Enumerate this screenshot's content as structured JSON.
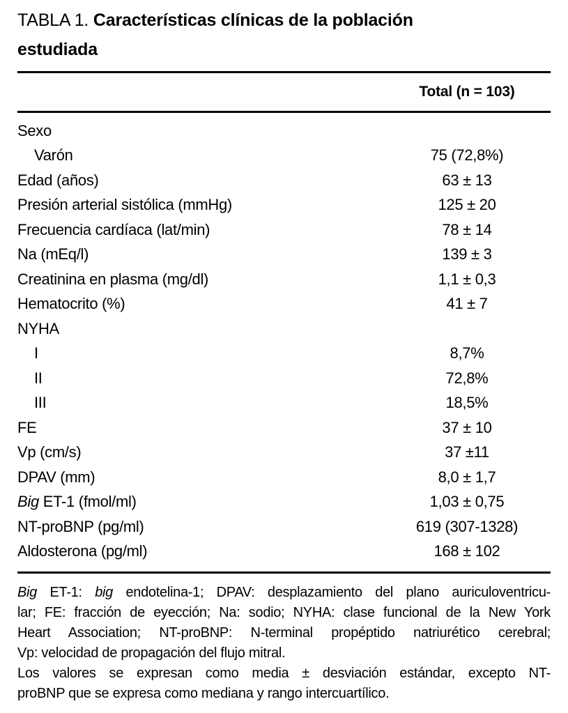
{
  "title": {
    "prefix": "TABLA 1. ",
    "bold_line1": "Características clínicas de la población",
    "bold_line2": "estudiada"
  },
  "header": {
    "value_column": "Total (n = 103)"
  },
  "rows": [
    {
      "label_segments": [
        {
          "text": "Sexo"
        }
      ],
      "value": "",
      "indent": false
    },
    {
      "label_segments": [
        {
          "text": "Varón"
        }
      ],
      "value": "75 (72,8%)",
      "indent": true
    },
    {
      "label_segments": [
        {
          "text": "Edad (años)"
        }
      ],
      "value": "63 ± 13",
      "indent": false
    },
    {
      "label_segments": [
        {
          "text": "Presión arterial sistólica (mmHg)"
        }
      ],
      "value": "125 ± 20",
      "indent": false
    },
    {
      "label_segments": [
        {
          "text": "Frecuencia cardíaca (lat/min)"
        }
      ],
      "value": "78 ± 14",
      "indent": false
    },
    {
      "label_segments": [
        {
          "text": "Na (mEq/l)"
        }
      ],
      "value": "139 ± 3",
      "indent": false
    },
    {
      "label_segments": [
        {
          "text": "Creatinina en plasma (mg/dl)"
        }
      ],
      "value": "1,1 ± 0,3",
      "indent": false
    },
    {
      "label_segments": [
        {
          "text": "Hematocrito (%)"
        }
      ],
      "value": "41 ± 7",
      "indent": false
    },
    {
      "label_segments": [
        {
          "text": "NYHA"
        }
      ],
      "value": "",
      "indent": false
    },
    {
      "label_segments": [
        {
          "text": "I"
        }
      ],
      "value": "8,7%",
      "indent": true
    },
    {
      "label_segments": [
        {
          "text": "II"
        }
      ],
      "value": "72,8%",
      "indent": true
    },
    {
      "label_segments": [
        {
          "text": "III"
        }
      ],
      "value": "18,5%",
      "indent": true
    },
    {
      "label_segments": [
        {
          "text": "FE"
        }
      ],
      "value": "37 ± 10",
      "indent": false
    },
    {
      "label_segments": [
        {
          "text": "Vp (cm/s)"
        }
      ],
      "value": "37 ±11",
      "indent": false
    },
    {
      "label_segments": [
        {
          "text": "DPAV (mm)"
        }
      ],
      "value": "8,0 ± 1,7",
      "indent": false
    },
    {
      "label_segments": [
        {
          "text": "Big",
          "italic": true
        },
        {
          "text": " ET-1 (fmol/ml)"
        }
      ],
      "value": "1,03 ± 0,75",
      "indent": false
    },
    {
      "label_segments": [
        {
          "text": "NT-proBNP (pg/ml)"
        }
      ],
      "value": "619 (307-1328)",
      "indent": false
    },
    {
      "label_segments": [
        {
          "text": "Aldosterona (pg/ml)"
        }
      ],
      "value": "168 ± 102",
      "indent": false
    }
  ],
  "footnote": {
    "lines": [
      {
        "justify": true,
        "segments": [
          {
            "text": "Big",
            "italic": true
          },
          {
            "text": " ET-1: "
          },
          {
            "text": "big",
            "italic": true
          },
          {
            "text": " endotelina-1; DPAV: desplazamiento del plano auriculoventricu-"
          }
        ]
      },
      {
        "justify": true,
        "segments": [
          {
            "text": "lar; FE: fracción de eyección; Na: sodio; NYHA: clase funcional de la New York"
          }
        ]
      },
      {
        "justify": true,
        "segments": [
          {
            "text": "Heart Association; NT-proBNP: N-terminal propéptido natriurético cerebral;"
          }
        ]
      },
      {
        "justify": false,
        "segments": [
          {
            "text": "Vp: velocidad de propagación del flujo mitral."
          }
        ]
      },
      {
        "justify": true,
        "segments": [
          {
            "text": "Los valores se expresan como media ± desviación estándar, excepto NT-"
          }
        ]
      },
      {
        "justify": false,
        "segments": [
          {
            "text": "proBNP que se expresa como mediana y rango intercuartílico."
          }
        ]
      }
    ]
  },
  "colors": {
    "text": "#000000",
    "background": "#ffffff",
    "rule": "#000000"
  }
}
